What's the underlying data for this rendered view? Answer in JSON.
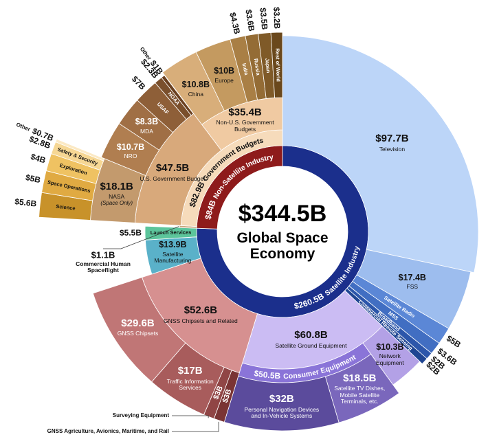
{
  "chart_data": {
    "type": "sunburst",
    "name": "Global Space Economy",
    "value": 344.5,
    "value_label": "$344.5B",
    "children": [
      {
        "name": "Satellite Industry",
        "value": 260.5,
        "value_label": "$260.5B",
        "color": "#1b2f8c",
        "children": [
          {
            "name": "Television",
            "value": 97.7,
            "value_label": "$97.7B",
            "color": "#bcd5f8"
          },
          {
            "name": "FSS",
            "value": 17.4,
            "value_label": "$17.4B",
            "color": "#9dbdee"
          },
          {
            "name": "Satellite Radio",
            "value": 5,
            "value_label": "$5B",
            "color": "#5b87d6"
          },
          {
            "name": "MSS",
            "value": 3.6,
            "value_label": "$3.6B",
            "color": "#416ec2"
          },
          {
            "name": "Broadband",
            "value": 2,
            "value_label": "$2B",
            "color": "#2c56aa"
          },
          {
            "name": "Commercial Remote Sensing",
            "value": 2,
            "value_label": "$2B",
            "color": "#1f4592"
          },
          {
            "name": "Satellite Ground Equipment",
            "value": 60.8,
            "value_label": "$60.8B",
            "color": "#cbbcf3",
            "children": [
              {
                "name": "Network Equipment",
                "value": 10.3,
                "value_label": "$10.3B",
                "color": "#b3a1e6"
              },
              {
                "name": "Consumer Equipment",
                "value": 50.5,
                "value_label": "$50.5B",
                "color": "#8a74d8",
                "children": [
                  {
                    "name": "Satellite TV Dishes, Mobile Satellite Terminals, etc.",
                    "value": 18.5,
                    "value_label": "$18.5B",
                    "color": "#7a67bc"
                  },
                  {
                    "name": "Personal Navigation Devices and In-Vehicle Systems",
                    "value": 32,
                    "value_label": "$32B",
                    "color": "#5b4b9c"
                  }
                ]
              }
            ]
          },
          {
            "name": "GNSS Chipsets and Related",
            "value": 52.6,
            "value_label": "$52.6B",
            "color": "#d69090",
            "children": [
              {
                "name": "GNSS Agriculture, Avionics, Maritime, and Rail",
                "value": 3,
                "value_label": "$3B",
                "color": "#7a3434"
              },
              {
                "name": "Surveying Equipment",
                "value": 3,
                "value_label": "$3B",
                "color": "#904545"
              },
              {
                "name": "Traffic Information Services",
                "value": 17,
                "value_label": "$17B",
                "color": "#a85c5c"
              },
              {
                "name": "GNSS Chipsets",
                "value": 29.6,
                "value_label": "$29.6B",
                "color": "#c07676"
              }
            ]
          },
          {
            "name": "Satellite Manufacturing",
            "value": 13.9,
            "value_label": "$13.9B",
            "color": "#5ab1c9"
          },
          {
            "name": "Launch Services",
            "value": 5.5,
            "value_label": "$5.5B",
            "color": "#5cc59b"
          }
        ]
      },
      {
        "name": "Non-Satellite Industry",
        "value": 84,
        "value_label": "$84B",
        "color": "#8e1b1b",
        "children": [
          {
            "name": "Commercial Human Spaceflight",
            "value": 1.1,
            "value_label": "$1.1B",
            "color": "#c8a880"
          },
          {
            "name": "Government Budgets",
            "value": 82.9,
            "value_label": "$82.9B",
            "color": "#f6dbbb",
            "children": [
              {
                "name": "U.S. Government Budget",
                "value": 47.5,
                "value_label": "$47.5B",
                "color": "#d8a97b",
                "children": [
                  {
                    "name": "NASA",
                    "note": "(Space Only)",
                    "value": 18.1,
                    "value_label": "$18.1B",
                    "color": "#c39a6d",
                    "children": [
                      {
                        "name": "Science",
                        "value": 5.6,
                        "value_label": "$5.6B",
                        "color": "#c8922a"
                      },
                      {
                        "name": "Space Operations",
                        "value": 5,
                        "value_label": "$5B",
                        "color": "#e0aa42"
                      },
                      {
                        "name": "Exploration",
                        "value": 4,
                        "value_label": "$4B",
                        "color": "#efc262"
                      },
                      {
                        "name": "Safety & Security",
                        "value": 2.8,
                        "value_label": "$2.8B",
                        "color": "#f6d794"
                      },
                      {
                        "name": "Other",
                        "value": 0.7,
                        "value_label": "$0.7B",
                        "color": "#fbe9c4"
                      }
                    ]
                  },
                  {
                    "name": "NRO",
                    "value": 10.7,
                    "value_label": "$10.7B",
                    "color": "#b07e50"
                  },
                  {
                    "name": "MDA",
                    "value": 8.3,
                    "value_label": "$8.3B",
                    "color": "#a06f45"
                  },
                  {
                    "name": "USAF",
                    "value": 7,
                    "value_label": "$7B",
                    "color": "#8e5f38"
                  },
                  {
                    "name": "NOAA",
                    "value": 2.3,
                    "value_label": "$2.3B",
                    "color": "#7a4f2c"
                  },
                  {
                    "name": "Other",
                    "value": 1,
                    "value_label": "$1B",
                    "color": "#6a4020"
                  }
                ]
              },
              {
                "name": "Non-U.S. Government Budgets",
                "value": 35.4,
                "value_label": "$35.4B",
                "color": "#f0caa2",
                "children": [
                  {
                    "name": "China",
                    "value": 10.8,
                    "value_label": "$10.8B",
                    "color": "#d8ae7a"
                  },
                  {
                    "name": "Europe",
                    "value": 10,
                    "value_label": "$10B",
                    "color": "#c49a60"
                  },
                  {
                    "name": "India",
                    "value": 4.3,
                    "value_label": "$4.3B",
                    "color": "#a97f45"
                  },
                  {
                    "name": "Russia",
                    "value": 3.6,
                    "value_label": "$3.6B",
                    "color": "#946c35"
                  },
                  {
                    "name": "Japan",
                    "value": 3.5,
                    "value_label": "$3.5B",
                    "color": "#7f5a28"
                  },
                  {
                    "name": "Rest of World",
                    "value": 3.2,
                    "value_label": "$3.2B",
                    "color": "#6a481c"
                  }
                ]
              }
            ]
          }
        ]
      }
    ]
  }
}
